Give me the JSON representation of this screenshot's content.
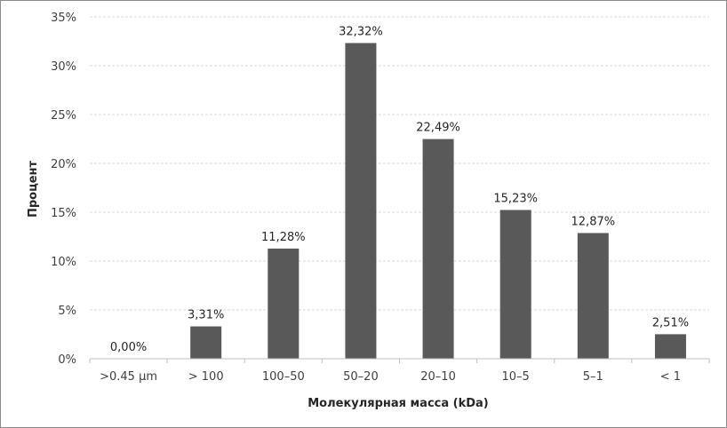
{
  "chart_data": {
    "type": "bar",
    "categories": [
      ">0.45 µm",
      "> 100",
      "100–50",
      "50–20",
      "20–10",
      "10–5",
      "5–1",
      "< 1"
    ],
    "values": [
      0.0,
      3.31,
      11.28,
      32.32,
      22.49,
      15.23,
      12.87,
      2.51
    ],
    "data_labels": [
      "0,00%",
      "3,31%",
      "11,28%",
      "32,32%",
      "22,49%",
      "15,23%",
      "12,87%",
      "2,51%"
    ],
    "xlabel": "Молекулярная масса (kDa)",
    "ylabel": "Процент",
    "ylim": [
      0,
      35
    ],
    "yticks": [
      0,
      5,
      10,
      15,
      20,
      25,
      30,
      35
    ],
    "ytick_labels": [
      "0%",
      "5%",
      "10%",
      "15%",
      "20%",
      "25%",
      "30%",
      "35%"
    ],
    "grid": true,
    "colors": {
      "bar": "#595959",
      "grid": "#d9d9d9",
      "axis": "#bfbfbf"
    }
  }
}
